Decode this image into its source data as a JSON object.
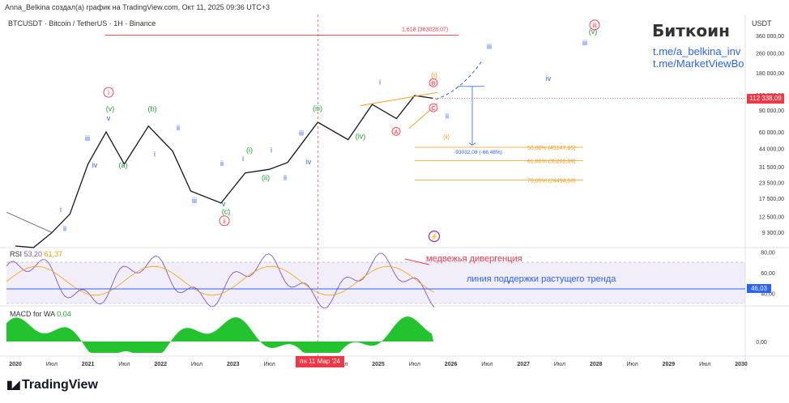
{
  "header": {
    "publisher_line": "Anna_Belkina создал(а) график на TradingView.com, Окт 11, 2025 09:36 UTC+3",
    "symbol_line": "BTCUSDT · Bitcoin / TetherUS · 1H · Binance",
    "currency": "USDT"
  },
  "branding": {
    "title": "Биткоин",
    "link1": "t.me/a_belkina_inv",
    "link2": "t.me/MarketViewBo",
    "logo_text": "TradingView"
  },
  "price_flag": "112 338,09",
  "date_flag": "пн 11 Мар '24",
  "colors": {
    "candle": "#131722",
    "rsi": "#7e57c2",
    "rsi_ma": "#f0a500",
    "macd": "#22c32e",
    "wave_blue": "#2962ff",
    "wave_green": "#1e9e2c",
    "wave_red": "#f23645",
    "wave_orange": "#f59c1a",
    "fib": "#f59c1a"
  },
  "chart_data": [
    {
      "type": "line",
      "y_scale": "log",
      "y_ticks": [
        "360 000,00",
        "260 000,00",
        "180 000,00",
        "120 000,00",
        "90 000,00",
        "60 000,00",
        "44 000,00",
        "31 500,00",
        "23 500,00",
        "17 500,00",
        "12 500,00",
        "9 300,00"
      ],
      "x_ticks": [
        "2020",
        "Июл",
        "2021",
        "Июл",
        "2022",
        "Июл",
        "2023",
        "Июл",
        "2024",
        "Июл",
        "2025",
        "Июл",
        "2026",
        "Июл",
        "2027",
        "Июл",
        "2028",
        "Июл",
        "2029",
        "Июл",
        "2030"
      ],
      "series": [
        {
          "x": [
            "2020-01",
            "2020-04",
            "2020-07",
            "2020-10",
            "2021-01",
            "2021-04",
            "2021-07",
            "2021-11",
            "2022-03",
            "2022-06",
            "2022-11",
            "2023-03",
            "2023-07",
            "2023-10",
            "2024-03",
            "2024-08",
            "2024-12",
            "2025-04",
            "2025-07",
            "2025-10"
          ],
          "y": [
            7200,
            7000,
            9200,
            13000,
            33000,
            60000,
            33000,
            67000,
            42000,
            20000,
            16000,
            28000,
            30000,
            34000,
            72000,
            52000,
            100000,
            77000,
            118000,
            112338
          ]
        }
      ],
      "wave_labels": [
        "i",
        "ii",
        "iii",
        "iv",
        "v",
        "(v)",
        "(a)",
        "(b)",
        "i",
        "ii",
        "iii",
        "v",
        "(c)",
        "ii",
        "i",
        "(i)",
        "(ii)",
        "i",
        "iii",
        "iv",
        "ii",
        "(iii)",
        "(iv)",
        "iii",
        "i",
        "A",
        "B",
        "C",
        "(i)",
        "(ii)",
        "ii",
        "iii",
        "iv",
        "(v)",
        "iii",
        "i"
      ],
      "fib_levels": [
        {
          "label": "1,618 (363028,07)",
          "value": 363028.07
        },
        {
          "label": "50,00% (45147,65)",
          "value": 45147.65
        },
        {
          "label": "61,80% (35202,89)",
          "value": 35202.89
        },
        {
          "label": "79,00% (24494,68)",
          "value": 24494.68
        }
      ],
      "measure_label": "-93032,08 (-66,48%)"
    },
    {
      "type": "line",
      "title": "RSI",
      "values_label": [
        "53,20",
        "61,37"
      ],
      "y_ticks": [
        "80,00",
        "60,00",
        "40,00"
      ],
      "current": "46,03",
      "annotations": [
        "медвежья дивергенция",
        "линия поддержки растущего тренда"
      ]
    },
    {
      "type": "area",
      "title": "MACD for WA",
      "value_label": "0,04",
      "y_ticks": [
        "0,00"
      ]
    }
  ]
}
